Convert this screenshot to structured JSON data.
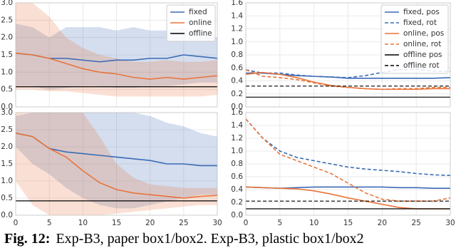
{
  "chart_data": [
    {
      "type": "line",
      "xlim": [
        0,
        30
      ],
      "xticks": [
        0,
        5,
        10,
        15,
        20,
        25,
        30
      ],
      "show_xtick_labels": false,
      "ylim": [
        0,
        3
      ],
      "yticks": [
        {
          "value": 0,
          "label": "0.0"
        },
        0.5,
        {
          "value": 1,
          "label": "1.0"
        },
        1.5,
        {
          "value": 2,
          "label": "2.0"
        },
        2.5,
        {
          "value": 3,
          "label": "3.0"
        }
      ],
      "grid": true,
      "legend": "upper right",
      "x": [
        0,
        2.5,
        5,
        7.5,
        10,
        12.5,
        15,
        17.5,
        20,
        22.5,
        25,
        27.5,
        30
      ],
      "series": [
        {
          "name": "fixed",
          "color": "#3b6bb5",
          "values": [
            1.55,
            1.5,
            1.4,
            1.4,
            1.35,
            1.3,
            1.35,
            1.35,
            1.4,
            1.4,
            1.5,
            1.45,
            1.4
          ],
          "band_lower": [
            0.6,
            0.6,
            0.5,
            0.55,
            0.6,
            0.6,
            0.55,
            0.55,
            0.6,
            0.6,
            0.65,
            0.7,
            0.7
          ],
          "band_upper": [
            2.4,
            2.3,
            2.0,
            2.3,
            2.3,
            2.3,
            2.2,
            2.3,
            2.2,
            2.2,
            2.3,
            2.1,
            2.0
          ]
        },
        {
          "name": "online",
          "color": "#e8743b",
          "values": [
            1.55,
            1.5,
            1.4,
            1.25,
            1.1,
            1.0,
            0.95,
            0.85,
            0.8,
            0.85,
            0.8,
            0.85,
            0.9
          ],
          "band_lower": [
            0.5,
            0.5,
            0.45,
            0.45,
            0.4,
            0.35,
            0.3,
            0.3,
            0.3,
            0.3,
            0.3,
            0.3,
            0.35
          ],
          "band_upper": [
            3.0,
            3.0,
            2.6,
            2.0,
            1.7,
            1.5,
            1.4,
            1.3,
            1.3,
            1.35,
            1.3,
            1.3,
            1.35
          ]
        },
        {
          "name": "offline",
          "color": "#000000",
          "x": [
            0,
            30
          ],
          "values": [
            0.58,
            0.58
          ]
        }
      ]
    },
    {
      "type": "line",
      "xlim": [
        0,
        30
      ],
      "xticks": [
        0,
        5,
        10,
        15,
        20,
        25,
        30
      ],
      "show_xtick_labels": false,
      "ylim": [
        0,
        1.6
      ],
      "yticks": [
        {
          "value": 0,
          "label": "0.0"
        },
        0.2,
        0.4,
        0.6,
        0.8,
        {
          "value": 1,
          "label": "1.0"
        },
        1.2,
        1.4,
        1.6
      ],
      "grid": true,
      "legend": "upper right",
      "x": [
        0,
        2.5,
        5,
        7.5,
        10,
        12.5,
        15,
        17.5,
        20,
        22.5,
        25,
        27.5,
        30
      ],
      "series": [
        {
          "name": "fixed, pos",
          "color": "#3b6bb5",
          "values": [
            0.52,
            0.52,
            0.5,
            0.48,
            0.47,
            0.46,
            0.44,
            0.44,
            0.44,
            0.44,
            0.44,
            0.44,
            0.45
          ]
        },
        {
          "name": "fixed, rot",
          "color": "#3b6bb5",
          "dashed": true,
          "values": [
            0.57,
            0.52,
            0.52,
            0.49,
            0.47,
            0.46,
            0.45,
            0.48,
            0.53,
            0.57,
            0.58,
            0.55,
            0.55
          ]
        },
        {
          "name": "online, pos",
          "color": "#e8743b",
          "values": [
            0.5,
            0.53,
            0.5,
            0.45,
            0.38,
            0.33,
            0.3,
            0.28,
            0.27,
            0.27,
            0.27,
            0.28,
            0.28
          ]
        },
        {
          "name": "online, rot",
          "color": "#e8743b",
          "dashed": true,
          "values": [
            0.57,
            0.47,
            0.45,
            0.42,
            0.37,
            0.32,
            0.3,
            0.28,
            0.27,
            0.28,
            0.28,
            0.3,
            0.3
          ]
        },
        {
          "name": "offline pos",
          "color": "#000000",
          "x": [
            0,
            30
          ],
          "values": [
            0.15,
            0.15
          ]
        },
        {
          "name": "offline rot",
          "color": "#000000",
          "dashed": true,
          "x": [
            0,
            30
          ],
          "values": [
            0.32,
            0.32
          ]
        }
      ]
    },
    {
      "type": "line",
      "xlim": [
        0,
        30
      ],
      "xticks": [
        0,
        5,
        10,
        15,
        20,
        25,
        30
      ],
      "show_xtick_labels": true,
      "ylim": [
        0,
        3
      ],
      "yticks": [
        {
          "value": 0,
          "label": "0.0"
        },
        0.5,
        {
          "value": 1,
          "label": "1.0"
        },
        1.5,
        {
          "value": 2,
          "label": "2.0"
        },
        2.5,
        {
          "value": 3,
          "label": "3.0"
        }
      ],
      "grid": true,
      "x": [
        0,
        2.5,
        5,
        7.5,
        10,
        12.5,
        15,
        17.5,
        20,
        22.5,
        25,
        27.5,
        30
      ],
      "series": [
        {
          "color": "#3b6bb5",
          "values": [
            2.4,
            2.3,
            1.95,
            1.85,
            1.8,
            1.75,
            1.7,
            1.65,
            1.6,
            1.5,
            1.5,
            1.45,
            1.45
          ],
          "band_lower": [
            2.0,
            1.5,
            1.2,
            0.8,
            0.5,
            0.3,
            0.2,
            0.2,
            0.3,
            0.4,
            0.5,
            0.6,
            0.6
          ],
          "band_upper": [
            2.9,
            3.0,
            3.0,
            3.0,
            3.0,
            3.0,
            3.0,
            3.0,
            2.9,
            2.7,
            2.6,
            2.4,
            2.3
          ]
        },
        {
          "color": "#e8743b",
          "values": [
            2.4,
            2.3,
            1.95,
            1.7,
            1.3,
            0.95,
            0.75,
            0.65,
            0.6,
            0.55,
            0.5,
            0.55,
            0.58
          ],
          "band_lower": [
            1.0,
            0.3,
            0,
            0,
            0,
            0,
            0.05,
            0.1,
            0.15,
            0.2,
            0.25,
            0.3,
            0.3
          ],
          "band_upper": [
            3.0,
            3.0,
            3.0,
            3.0,
            3.0,
            2.3,
            1.5,
            1.1,
            0.9,
            0.85,
            0.8,
            0.8,
            0.8
          ]
        },
        {
          "color": "#000000",
          "x": [
            0,
            30
          ],
          "values": [
            0.42,
            0.42
          ]
        }
      ]
    },
    {
      "type": "line",
      "xlim": [
        0,
        30
      ],
      "xticks": [
        0,
        5,
        10,
        15,
        20,
        25,
        30
      ],
      "show_xtick_labels": true,
      "ylim": [
        0,
        1.6
      ],
      "yticks": [
        {
          "value": 0,
          "label": "0.0"
        },
        0.2,
        0.4,
        0.6,
        0.8,
        {
          "value": 1,
          "label": "1.0"
        },
        1.2,
        1.4,
        1.6
      ],
      "grid": true,
      "x": [
        0,
        2.5,
        5,
        7.5,
        10,
        12.5,
        15,
        17.5,
        20,
        22.5,
        25,
        27.5,
        30
      ],
      "series": [
        {
          "color": "#3b6bb5",
          "values": [
            0.44,
            0.43,
            0.42,
            0.43,
            0.44,
            0.44,
            0.44,
            0.44,
            0.44,
            0.43,
            0.43,
            0.42,
            0.42
          ]
        },
        {
          "color": "#3b6bb5",
          "dashed": true,
          "values": [
            1.5,
            1.2,
            1.0,
            0.9,
            0.85,
            0.8,
            0.75,
            0.72,
            0.7,
            0.68,
            0.65,
            0.63,
            0.62
          ]
        },
        {
          "color": "#e8743b",
          "values": [
            0.44,
            0.43,
            0.42,
            0.41,
            0.38,
            0.33,
            0.27,
            0.22,
            0.17,
            0.12,
            0.1,
            0.1,
            0.1
          ]
        },
        {
          "color": "#e8743b",
          "dashed": true,
          "values": [
            1.5,
            1.2,
            0.95,
            0.85,
            0.75,
            0.65,
            0.5,
            0.35,
            0.25,
            0.22,
            0.22,
            0.22,
            0.27
          ]
        },
        {
          "color": "#000000",
          "x": [
            0,
            30
          ],
          "values": [
            0.1,
            0.1
          ]
        },
        {
          "color": "#000000",
          "dashed": true,
          "x": [
            0,
            30
          ],
          "values": [
            0.22,
            0.22
          ]
        }
      ]
    }
  ],
  "caption": {
    "label": "Fig. 12:",
    "text": "Exp-B3, paper box1/box2. Exp-B3, plastic box1/box2"
  }
}
